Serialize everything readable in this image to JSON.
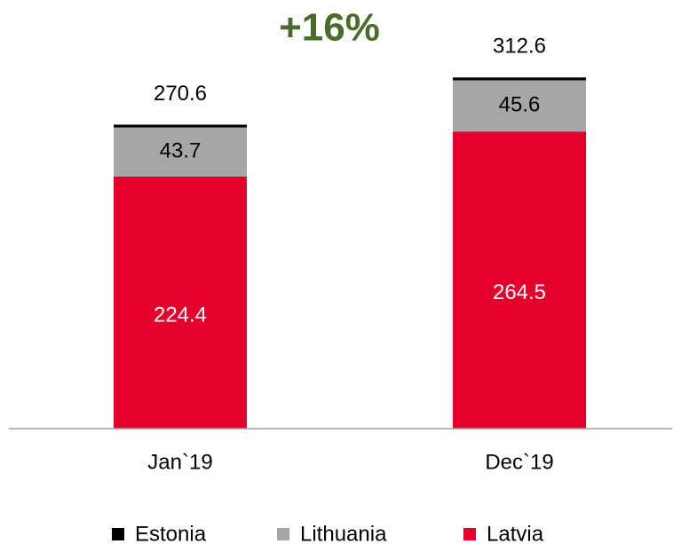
{
  "chart_data": {
    "type": "stacked_bar",
    "annotation": "+16%",
    "categories": [
      "Jan`19",
      "Dec`19"
    ],
    "series": [
      {
        "name": "Latvia",
        "color": "#e4002b",
        "values": [
          224.4,
          264.5
        ]
      },
      {
        "name": "Lithuania",
        "color": "#a6a6a6",
        "values": [
          43.7,
          45.6
        ]
      },
      {
        "name": "Estonia",
        "color": "#000000",
        "values": [
          2.5,
          2.5
        ]
      }
    ],
    "totals": [
      270.6,
      312.6
    ],
    "ylim": [
      0,
      380
    ],
    "legend": "bottom"
  }
}
